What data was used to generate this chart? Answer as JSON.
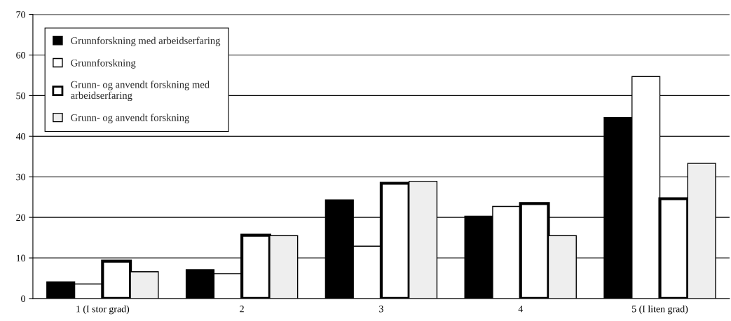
{
  "chart_data": {
    "type": "bar",
    "categories": [
      "1 (I stor grad)",
      "2",
      "3",
      "4",
      "5 (I liten grad)"
    ],
    "series": [
      {
        "name": "Grunnforskning med arbeidserfaring",
        "color": "#000000",
        "values": [
          4.1,
          7.1,
          24.3,
          20.3,
          44.6
        ]
      },
      {
        "name": "Grunnforskning",
        "color": "#ffffff",
        "values": [
          3.6,
          6.1,
          12.9,
          22.7,
          54.7
        ]
      },
      {
        "name": "Grunn- og anvendt forskning med\narbeidserfaring",
        "color": "#ffffff",
        "values": [
          9.2,
          15.6,
          28.4,
          23.4,
          24.6
        ]
      },
      {
        "name": "Grunn- og anvendt forskning",
        "color": "#eeeeee",
        "values": [
          6.6,
          15.5,
          28.9,
          15.5,
          33.3
        ]
      }
    ],
    "ylim": [
      0,
      70
    ],
    "yticks": [
      0,
      10,
      20,
      30,
      40,
      50,
      60,
      70
    ],
    "grid": "y",
    "legend": "top left"
  }
}
